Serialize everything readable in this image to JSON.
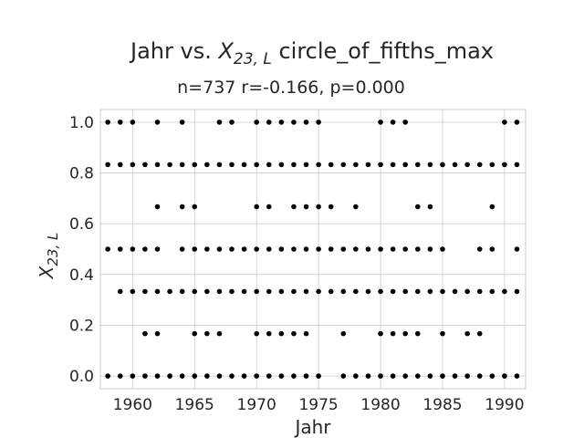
{
  "chart_data": {
    "type": "scatter",
    "title_prefix": "Jahr vs. ",
    "title_var": "X",
    "title_sub": "23, L",
    "title_suffix": " circle_of_fifths_max",
    "subtitle": "n=737 r=-0.166, p=0.000",
    "xlabel": "Jahr",
    "ylabel_var": "X",
    "ylabel_sub": "23, L",
    "xlim": [
      1957.4,
      1991.7
    ],
    "ylim": [
      -0.05,
      1.05
    ],
    "xticks": [
      1960,
      1965,
      1970,
      1975,
      1980,
      1985,
      1990
    ],
    "yticks": [
      "0.0",
      "0.2",
      "0.4",
      "0.6",
      "0.8",
      "1.0"
    ],
    "grid": true,
    "point_color": "#000000",
    "points": [
      {
        "y": 1.0,
        "x": [
          1958,
          1959,
          1960,
          1962,
          1964,
          1967,
          1968,
          1970,
          1971,
          1972,
          1973,
          1974,
          1975,
          1980,
          1981,
          1982,
          1990,
          1991
        ]
      },
      {
        "y": 0.833,
        "x": [
          1958,
          1959,
          1960,
          1961,
          1962,
          1963,
          1964,
          1965,
          1966,
          1967,
          1968,
          1969,
          1970,
          1971,
          1972,
          1973,
          1974,
          1975,
          1976,
          1977,
          1978,
          1979,
          1980,
          1981,
          1982,
          1983,
          1984,
          1985,
          1986,
          1987,
          1988,
          1989,
          1990,
          1991
        ]
      },
      {
        "y": 0.667,
        "x": [
          1962,
          1964,
          1965,
          1970,
          1971,
          1973,
          1974,
          1975,
          1976,
          1978,
          1983,
          1984,
          1989
        ]
      },
      {
        "y": 0.5,
        "x": [
          1958,
          1959,
          1960,
          1961,
          1962,
          1964,
          1965,
          1966,
          1967,
          1968,
          1969,
          1970,
          1971,
          1972,
          1973,
          1974,
          1975,
          1976,
          1977,
          1978,
          1979,
          1980,
          1981,
          1982,
          1983,
          1984,
          1985,
          1988,
          1989,
          1991
        ]
      },
      {
        "y": 0.333,
        "x": [
          1959,
          1960,
          1961,
          1962,
          1963,
          1964,
          1965,
          1966,
          1967,
          1968,
          1969,
          1970,
          1971,
          1972,
          1973,
          1974,
          1975,
          1976,
          1977,
          1978,
          1979,
          1980,
          1981,
          1982,
          1983,
          1984,
          1985,
          1986,
          1987,
          1988,
          1989,
          1990,
          1991
        ]
      },
      {
        "y": 0.167,
        "x": [
          1961,
          1962,
          1965,
          1966,
          1967,
          1970,
          1971,
          1972,
          1973,
          1974,
          1977,
          1980,
          1981,
          1982,
          1983,
          1985,
          1987,
          1988
        ]
      },
      {
        "y": 0.0,
        "x": [
          1958,
          1959,
          1960,
          1961,
          1962,
          1963,
          1964,
          1965,
          1966,
          1967,
          1968,
          1969,
          1970,
          1971,
          1972,
          1973,
          1974,
          1975,
          1977,
          1978,
          1979,
          1980,
          1981,
          1982,
          1983,
          1984,
          1985,
          1986,
          1987,
          1988,
          1989,
          1990,
          1991
        ]
      }
    ]
  }
}
